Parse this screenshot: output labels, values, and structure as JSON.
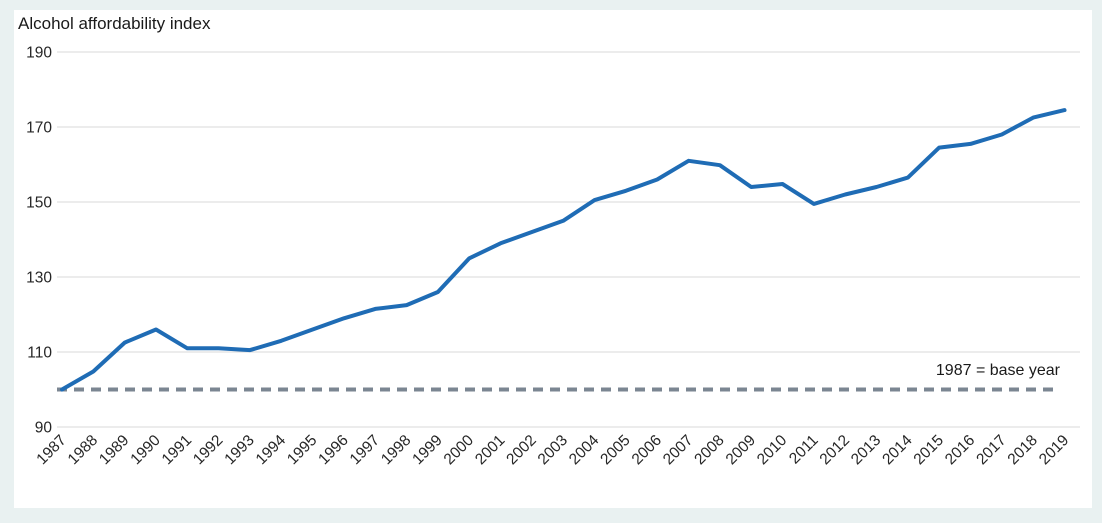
{
  "chart_data": {
    "type": "line",
    "title": "Alcohol affordability index",
    "categories": [
      "1987",
      "1988",
      "1989",
      "1990",
      "1991",
      "1992",
      "1993",
      "1994",
      "1995",
      "1996",
      "1997",
      "1998",
      "1999",
      "2000",
      "2001",
      "2002",
      "2003",
      "2004",
      "2005",
      "2006",
      "2007",
      "2008",
      "2009",
      "2010",
      "2011",
      "2012",
      "2013",
      "2014",
      "2015",
      "2016",
      "2017",
      "2018",
      "2019"
    ],
    "series": [
      {
        "name": "Alcohol affordability index",
        "values": [
          100,
          104.8,
          112.5,
          116,
          111,
          111,
          110.5,
          113,
          116,
          119,
          121.5,
          122.5,
          126,
          135,
          139,
          142,
          145,
          150.5,
          153,
          156,
          161,
          159.8,
          154,
          154.8,
          149.5,
          152,
          154,
          156.5,
          164.5,
          165.5,
          168,
          172.5,
          174.5
        ]
      }
    ],
    "xlabel": "",
    "ylabel": "",
    "ylim": [
      90,
      190
    ],
    "yticks": [
      90,
      110,
      130,
      150,
      170,
      190
    ],
    "grid": "horizontal-only",
    "legend": "none",
    "annotation": {
      "baseline_value": 100,
      "baseline_label": "1987 = base year"
    },
    "colors": {
      "line": "#1f6cb5",
      "baseline_dash": "#7b8692",
      "gridline": "#d9d9d9",
      "panel_background": "#ffffff",
      "page_background": "#e9f1f1"
    }
  }
}
